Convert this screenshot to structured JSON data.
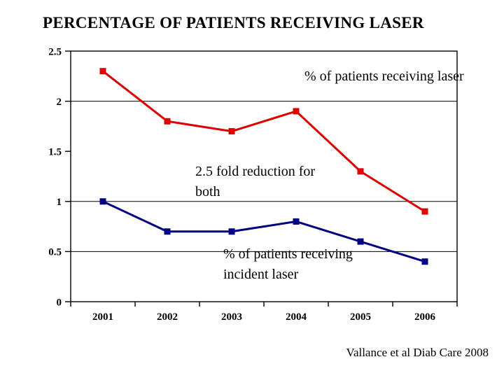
{
  "slide": {
    "title": "PERCENTAGE OF PATIENTS RECEIVING LASER",
    "citation": "Vallance et al Diab Care 2008"
  },
  "chart_data": {
    "type": "line",
    "title": "PERCENTAGE OF PATIENTS RECEIVING LASER",
    "categories": [
      "2001",
      "2002",
      "2003",
      "2004",
      "2005",
      "2006"
    ],
    "series": [
      {
        "name": "% of patients receiving laser",
        "values": [
          2.3,
          1.8,
          1.7,
          1.9,
          1.3,
          0.9
        ],
        "color": "#DD0000",
        "marker": "square"
      },
      {
        "name": "% of patients receiving incident laser",
        "values": [
          1.0,
          0.7,
          0.7,
          0.8,
          0.6,
          0.4
        ],
        "color": "#000080",
        "marker": "square"
      }
    ],
    "xlabel": "",
    "ylabel": "",
    "ylim": [
      0,
      2.5
    ],
    "yticks": [
      0,
      0.5,
      1,
      1.5,
      2,
      2.5
    ],
    "ytick_labels": [
      "0",
      "0.5",
      "1",
      "1.5",
      "2",
      "2.5"
    ],
    "gridline_values": [
      0.5,
      1,
      2
    ],
    "grid": "horizontal-partial",
    "legend": "none",
    "plot_border": true,
    "axis_color": "#000000",
    "annotations": [
      {
        "text": "% of patients receiving laser"
      },
      {
        "text": "2.5 fold reduction for both"
      },
      {
        "text": "% of patients receiving incident laser"
      }
    ]
  }
}
